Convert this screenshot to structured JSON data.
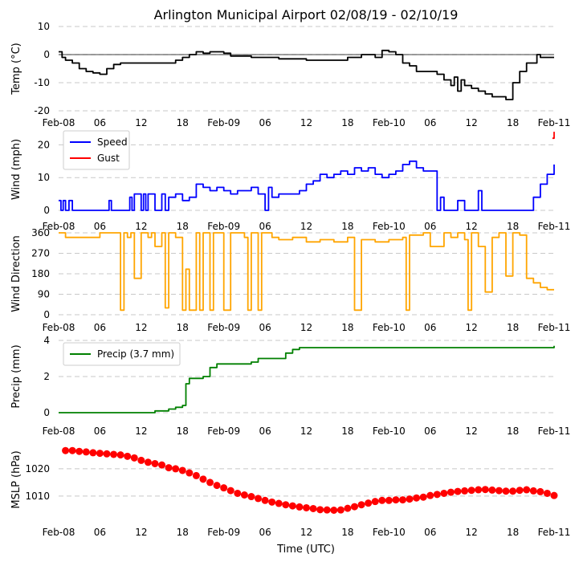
{
  "title": "Arlington Municipal Airport 02/08/19 - 02/10/19",
  "xlabel": "Time (UTC)",
  "x_range": [
    "2019-02-08T00:00",
    "2019-02-11T00:00"
  ],
  "x_ticks": [
    {
      "t": "2019-02-08T00:00",
      "label": "Feb-08"
    },
    {
      "t": "2019-02-08T06:00",
      "label": "06"
    },
    {
      "t": "2019-02-08T12:00",
      "label": "12"
    },
    {
      "t": "2019-02-08T18:00",
      "label": "18"
    },
    {
      "t": "2019-02-09T00:00",
      "label": "Feb-09"
    },
    {
      "t": "2019-02-09T06:00",
      "label": "06"
    },
    {
      "t": "2019-02-09T12:00",
      "label": "12"
    },
    {
      "t": "2019-02-09T18:00",
      "label": "18"
    },
    {
      "t": "2019-02-10T00:00",
      "label": "Feb-10"
    },
    {
      "t": "2019-02-10T06:00",
      "label": "06"
    },
    {
      "t": "2019-02-10T12:00",
      "label": "12"
    },
    {
      "t": "2019-02-10T18:00",
      "label": "18"
    },
    {
      "t": "2019-02-11T00:00",
      "label": "Feb-11"
    }
  ],
  "chart_data": [
    {
      "type": "line",
      "ylabel": "Temp ($^\\circ$C)",
      "ylabel_display": "Temp (°C)",
      "ylim": [
        -20,
        10
      ],
      "yticks": [
        -20,
        -10,
        0,
        10
      ],
      "grid": "horizontal-dashed",
      "zero_line": true,
      "series": [
        {
          "color": "#000000",
          "x": [
            "2019-02-08T00:00",
            "2019-02-08T00:30",
            "2019-02-08T01:00",
            "2019-02-08T02:00",
            "2019-02-08T03:00",
            "2019-02-08T04:00",
            "2019-02-08T05:00",
            "2019-02-08T06:00",
            "2019-02-08T07:00",
            "2019-02-08T08:00",
            "2019-02-08T09:00",
            "2019-02-08T10:00",
            "2019-02-08T12:00",
            "2019-02-08T14:00",
            "2019-02-08T16:00",
            "2019-02-08T17:00",
            "2019-02-08T18:00",
            "2019-02-08T19:00",
            "2019-02-08T20:00",
            "2019-02-08T21:00",
            "2019-02-08T22:00",
            "2019-02-09T00:00",
            "2019-02-09T01:00",
            "2019-02-09T04:00",
            "2019-02-09T08:00",
            "2019-02-09T12:00",
            "2019-02-09T16:00",
            "2019-02-09T18:00",
            "2019-02-09T20:00",
            "2019-02-09T22:00",
            "2019-02-09T23:00",
            "2019-02-10T00:00",
            "2019-02-10T01:00",
            "2019-02-10T02:00",
            "2019-02-10T03:00",
            "2019-02-10T04:00",
            "2019-02-10T05:00",
            "2019-02-10T06:00",
            "2019-02-10T07:00",
            "2019-02-10T08:00",
            "2019-02-10T09:00",
            "2019-02-10T09:30",
            "2019-02-10T10:00",
            "2019-02-10T10:30",
            "2019-02-10T11:00",
            "2019-02-10T12:00",
            "2019-02-10T13:00",
            "2019-02-10T14:00",
            "2019-02-10T15:00",
            "2019-02-10T16:00",
            "2019-02-10T17:00",
            "2019-02-10T18:00",
            "2019-02-10T19:00",
            "2019-02-10T20:00",
            "2019-02-10T21:00",
            "2019-02-10T21:30",
            "2019-02-10T22:00",
            "2019-02-10T23:00",
            "2019-02-11T00:00"
          ],
          "y": [
            1,
            -1,
            -2,
            -3,
            -5,
            -6,
            -6.5,
            -7,
            -5,
            -3.5,
            -3,
            -3,
            -3,
            -3,
            -3,
            -2,
            -1,
            0,
            1,
            0.5,
            1,
            0.5,
            -0.5,
            -1,
            -1.5,
            -2,
            -2,
            -1,
            0,
            -1,
            1.5,
            1,
            0,
            -3,
            -4,
            -6,
            -6,
            -6,
            -7,
            -9,
            -11,
            -8,
            -13,
            -9,
            -11,
            -12,
            -13,
            -14,
            -15,
            -15,
            -16,
            -10,
            -6,
            -3,
            -3,
            0,
            -1,
            -1,
            -1
          ]
        }
      ]
    },
    {
      "type": "line",
      "ylabel": "Wind (mph)",
      "ylim": [
        0,
        25
      ],
      "yticks": [
        0,
        10,
        20
      ],
      "grid": "horizontal-dashed",
      "legend": "top-left",
      "series": [
        {
          "name": "Speed",
          "color": "#0000ff",
          "x": [
            "2019-02-08T00:00",
            "2019-02-08T00:20",
            "2019-02-08T00:40",
            "2019-02-08T01:00",
            "2019-02-08T01:30",
            "2019-02-08T02:00",
            "2019-02-08T04:00",
            "2019-02-08T07:00",
            "2019-02-08T07:20",
            "2019-02-08T07:40",
            "2019-02-08T08:00",
            "2019-02-08T10:00",
            "2019-02-08T10:20",
            "2019-02-08T10:40",
            "2019-02-08T11:00",
            "2019-02-08T12:00",
            "2019-02-08T12:20",
            "2019-02-08T12:40",
            "2019-02-08T13:00",
            "2019-02-08T14:00",
            "2019-02-08T15:00",
            "2019-02-08T15:30",
            "2019-02-08T16:00",
            "2019-02-08T17:00",
            "2019-02-08T18:00",
            "2019-02-08T19:00",
            "2019-02-08T20:00",
            "2019-02-08T21:00",
            "2019-02-08T22:00",
            "2019-02-08T23:00",
            "2019-02-09T00:00",
            "2019-02-09T01:00",
            "2019-02-09T02:00",
            "2019-02-09T03:00",
            "2019-02-09T04:00",
            "2019-02-09T05:00",
            "2019-02-09T06:00",
            "2019-02-09T06:30",
            "2019-02-09T07:00",
            "2019-02-09T08:00",
            "2019-02-09T09:00",
            "2019-02-09T10:00",
            "2019-02-09T11:00",
            "2019-02-09T12:00",
            "2019-02-09T13:00",
            "2019-02-09T14:00",
            "2019-02-09T15:00",
            "2019-02-09T16:00",
            "2019-02-09T17:00",
            "2019-02-09T18:00",
            "2019-02-09T19:00",
            "2019-02-09T20:00",
            "2019-02-09T21:00",
            "2019-02-09T22:00",
            "2019-02-09T23:00",
            "2019-02-10T00:00",
            "2019-02-10T01:00",
            "2019-02-10T02:00",
            "2019-02-10T03:00",
            "2019-02-10T04:00",
            "2019-02-10T05:00",
            "2019-02-10T06:00",
            "2019-02-10T07:00",
            "2019-02-10T07:30",
            "2019-02-10T08:00",
            "2019-02-10T09:00",
            "2019-02-10T10:00",
            "2019-02-10T11:00",
            "2019-02-10T12:00",
            "2019-02-10T13:00",
            "2019-02-10T13:30",
            "2019-02-10T14:00",
            "2019-02-10T15:00",
            "2019-02-10T16:00",
            "2019-02-10T17:00",
            "2019-02-10T18:00",
            "2019-02-10T19:00",
            "2019-02-10T20:00",
            "2019-02-10T21:00",
            "2019-02-10T22:00",
            "2019-02-10T23:00",
            "2019-02-11T00:00"
          ],
          "y": [
            3,
            0,
            3,
            0,
            3,
            0,
            0,
            0,
            3,
            0,
            0,
            0,
            4,
            0,
            5,
            0,
            5,
            0,
            5,
            0,
            5,
            0,
            4,
            5,
            3,
            4,
            8,
            7,
            6,
            7,
            6,
            5,
            6,
            6,
            7,
            5,
            0,
            7,
            4,
            5,
            5,
            5,
            6,
            8,
            9,
            11,
            10,
            11,
            12,
            11,
            13,
            12,
            13,
            11,
            10,
            11,
            12,
            14,
            15,
            13,
            12,
            12,
            0,
            4,
            0,
            0,
            3,
            0,
            0,
            6,
            0,
            0,
            0,
            0,
            0,
            0,
            0,
            0,
            4,
            8,
            11,
            14
          ]
        },
        {
          "name": "Gust",
          "color": "#ff0000",
          "x": [
            "2019-02-10T23:45",
            "2019-02-11T00:00"
          ],
          "y": [
            22,
            24
          ]
        }
      ]
    },
    {
      "type": "line",
      "ylabel": "Wind Direction",
      "ylim": [
        0,
        360
      ],
      "yticks": [
        0,
        90,
        180,
        270,
        360
      ],
      "grid": "horizontal-dashed",
      "series": [
        {
          "color": "#ffa500",
          "x": [
            "2019-02-08T00:00",
            "2019-02-08T01:00",
            "2019-02-08T06:00",
            "2019-02-08T08:00",
            "2019-02-08T09:00",
            "2019-02-08T09:30",
            "2019-02-08T10:00",
            "2019-02-08T10:30",
            "2019-02-08T11:00",
            "2019-02-08T12:00",
            "2019-02-08T13:00",
            "2019-02-08T13:30",
            "2019-02-08T14:00",
            "2019-02-08T15:00",
            "2019-02-08T15:30",
            "2019-02-08T16:00",
            "2019-02-08T17:00",
            "2019-02-08T18:00",
            "2019-02-08T18:30",
            "2019-02-08T19:00",
            "2019-02-08T20:00",
            "2019-02-08T20:30",
            "2019-02-08T21:00",
            "2019-02-08T22:00",
            "2019-02-08T22:30",
            "2019-02-08T23:00",
            "2019-02-09T00:00",
            "2019-02-09T01:00",
            "2019-02-09T03:00",
            "2019-02-09T03:30",
            "2019-02-09T04:00",
            "2019-02-09T05:00",
            "2019-02-09T05:30",
            "2019-02-09T06:00",
            "2019-02-09T07:00",
            "2019-02-09T08:00",
            "2019-02-09T10:00",
            "2019-02-09T12:00",
            "2019-02-09T14:00",
            "2019-02-09T16:00",
            "2019-02-09T18:00",
            "2019-02-09T19:00",
            "2019-02-09T20:00",
            "2019-02-09T22:00",
            "2019-02-10T00:00",
            "2019-02-10T02:00",
            "2019-02-10T02:30",
            "2019-02-10T03:00",
            "2019-02-10T05:00",
            "2019-02-10T06:00",
            "2019-02-10T08:00",
            "2019-02-10T09:00",
            "2019-02-10T10:00",
            "2019-02-10T11:00",
            "2019-02-10T11:30",
            "2019-02-10T12:00",
            "2019-02-10T13:00",
            "2019-02-10T14:00",
            "2019-02-10T15:00",
            "2019-02-10T16:00",
            "2019-02-10T17:00",
            "2019-02-10T18:00",
            "2019-02-10T19:00",
            "2019-02-10T20:00",
            "2019-02-10T21:00",
            "2019-02-10T22:00",
            "2019-02-10T23:00",
            "2019-02-11T00:00"
          ],
          "y": [
            360,
            340,
            360,
            360,
            20,
            360,
            340,
            360,
            160,
            360,
            340,
            360,
            300,
            360,
            30,
            360,
            340,
            20,
            200,
            20,
            360,
            20,
            360,
            20,
            360,
            360,
            20,
            360,
            340,
            20,
            360,
            20,
            360,
            360,
            340,
            330,
            340,
            320,
            330,
            320,
            340,
            20,
            330,
            320,
            330,
            340,
            20,
            350,
            360,
            300,
            360,
            340,
            360,
            330,
            20,
            360,
            300,
            100,
            340,
            360,
            170,
            360,
            350,
            160,
            140,
            120,
            110,
            110
          ]
        }
      ]
    },
    {
      "type": "line",
      "ylabel": "Precip (mm)",
      "ylim": [
        0,
        4
      ],
      "yticks": [
        0,
        2,
        4
      ],
      "grid": "horizontal-dashed",
      "legend": "top-left",
      "series": [
        {
          "name": "Precip (3.7 mm)",
          "color": "#008000",
          "x": [
            "2019-02-08T00:00",
            "2019-02-08T14:00",
            "2019-02-08T16:00",
            "2019-02-08T17:00",
            "2019-02-08T18:00",
            "2019-02-08T18:30",
            "2019-02-08T19:00",
            "2019-02-08T21:00",
            "2019-02-08T22:00",
            "2019-02-08T23:00",
            "2019-02-09T04:00",
            "2019-02-09T05:00",
            "2019-02-09T08:00",
            "2019-02-09T09:00",
            "2019-02-09T10:00",
            "2019-02-09T11:00",
            "2019-02-10T12:00",
            "2019-02-10T23:00",
            "2019-02-11T00:00"
          ],
          "y": [
            0,
            0.1,
            0.2,
            0.3,
            0.4,
            1.6,
            1.9,
            2.0,
            2.5,
            2.7,
            2.8,
            3.0,
            3.0,
            3.3,
            3.5,
            3.6,
            3.6,
            3.6,
            3.7
          ]
        }
      ]
    },
    {
      "type": "scatter",
      "ylabel": "MSLP (hPa)",
      "ylim": [
        1002,
        1030
      ],
      "yticks": [
        1010,
        1020
      ],
      "grid": "horizontal-dashed",
      "series": [
        {
          "color": "#ff0000",
          "x": [
            "2019-02-08T01:00",
            "2019-02-08T02:00",
            "2019-02-08T03:00",
            "2019-02-08T04:00",
            "2019-02-08T05:00",
            "2019-02-08T06:00",
            "2019-02-08T07:00",
            "2019-02-08T08:00",
            "2019-02-08T09:00",
            "2019-02-08T10:00",
            "2019-02-08T11:00",
            "2019-02-08T12:00",
            "2019-02-08T13:00",
            "2019-02-08T14:00",
            "2019-02-08T15:00",
            "2019-02-08T16:00",
            "2019-02-08T17:00",
            "2019-02-08T18:00",
            "2019-02-08T19:00",
            "2019-02-08T20:00",
            "2019-02-08T21:00",
            "2019-02-08T22:00",
            "2019-02-08T23:00",
            "2019-02-09T00:00",
            "2019-02-09T01:00",
            "2019-02-09T02:00",
            "2019-02-09T03:00",
            "2019-02-09T04:00",
            "2019-02-09T05:00",
            "2019-02-09T06:00",
            "2019-02-09T07:00",
            "2019-02-09T08:00",
            "2019-02-09T09:00",
            "2019-02-09T10:00",
            "2019-02-09T11:00",
            "2019-02-09T12:00",
            "2019-02-09T13:00",
            "2019-02-09T14:00",
            "2019-02-09T15:00",
            "2019-02-09T16:00",
            "2019-02-09T17:00",
            "2019-02-09T18:00",
            "2019-02-09T19:00",
            "2019-02-09T20:00",
            "2019-02-09T21:00",
            "2019-02-09T22:00",
            "2019-02-09T23:00",
            "2019-02-10T00:00",
            "2019-02-10T01:00",
            "2019-02-10T02:00",
            "2019-02-10T03:00",
            "2019-02-10T04:00",
            "2019-02-10T05:00",
            "2019-02-10T06:00",
            "2019-02-10T07:00",
            "2019-02-10T08:00",
            "2019-02-10T09:00",
            "2019-02-10T10:00",
            "2019-02-10T11:00",
            "2019-02-10T12:00",
            "2019-02-10T13:00",
            "2019-02-10T14:00",
            "2019-02-10T15:00",
            "2019-02-10T16:00",
            "2019-02-10T17:00",
            "2019-02-10T18:00",
            "2019-02-10T19:00",
            "2019-02-10T20:00",
            "2019-02-10T21:00",
            "2019-02-10T22:00",
            "2019-02-10T23:00",
            "2019-02-11T00:00"
          ],
          "y": [
            1026.7,
            1026.7,
            1026.4,
            1026.2,
            1025.9,
            1025.7,
            1025.5,
            1025.3,
            1025.1,
            1024.6,
            1024.0,
            1023.1,
            1022.4,
            1021.9,
            1021.4,
            1020.4,
            1020.0,
            1019.4,
            1018.5,
            1017.5,
            1016.2,
            1015.0,
            1013.9,
            1013.0,
            1012.0,
            1011.0,
            1010.4,
            1009.8,
            1009.1,
            1008.4,
            1007.8,
            1007.3,
            1006.8,
            1006.4,
            1006.0,
            1005.7,
            1005.4,
            1005.0,
            1004.9,
            1004.8,
            1004.9,
            1005.5,
            1006.1,
            1006.8,
            1007.4,
            1008.0,
            1008.4,
            1008.4,
            1008.6,
            1008.6,
            1008.9,
            1009.3,
            1009.6,
            1010.2,
            1010.6,
            1011.0,
            1011.4,
            1011.7,
            1011.9,
            1012.1,
            1012.3,
            1012.4,
            1012.2,
            1012.0,
            1011.8,
            1011.8,
            1012.1,
            1012.3,
            1011.9,
            1011.6,
            1011.0,
            1010.2
          ]
        }
      ]
    }
  ]
}
